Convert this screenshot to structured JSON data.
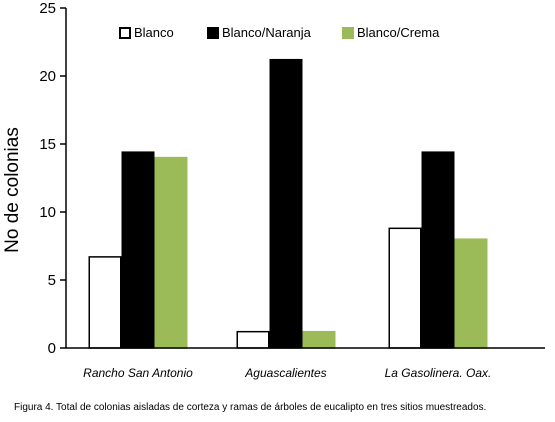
{
  "chart_data": {
    "type": "bar",
    "categories": [
      "Rancho San Antonio",
      "Aguascalientes",
      "La Gasolinera. Oax."
    ],
    "series": [
      {
        "name": "Blanco",
        "color": "#ffffff",
        "stroke": "#000000",
        "values": [
          6.7,
          1.2,
          8.8
        ]
      },
      {
        "name": "Blanco/Naranja",
        "color": "#000000",
        "stroke": "#000000",
        "values": [
          14.4,
          21.2,
          14.4
        ]
      },
      {
        "name": "Blanco/Crema",
        "color": "#9bbb59",
        "stroke": "#9bbb59",
        "values": [
          14.0,
          1.2,
          8.0
        ]
      }
    ],
    "ylabel": "No de colonias",
    "xlabel": "",
    "ylim": [
      0,
      25
    ],
    "yticks": [
      0,
      5,
      10,
      15,
      20,
      25
    ],
    "grid": false,
    "legend_position": "top"
  },
  "caption": "Figura 4. Total de colonias aisladas de corteza y ramas de árboles de eucalipto en tres sitios muestreados."
}
